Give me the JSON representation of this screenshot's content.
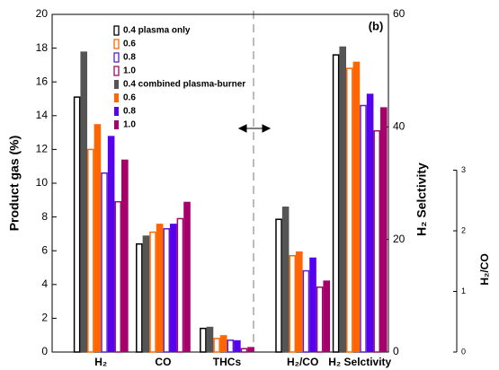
{
  "chart_data": {
    "type": "bar",
    "annotation": "(b)",
    "ylabel": "Product gas (%)",
    "y2label": "H₂ Selctivity",
    "y3label": "H₂/CO",
    "categories": [
      "H₂",
      "CO",
      "THCs",
      "H₂/CO",
      "H₂ Selctivity"
    ],
    "category_axes": [
      "y",
      "y",
      "y",
      "y3",
      "y2"
    ],
    "ylim": [
      0,
      20
    ],
    "yticks": [
      0,
      2,
      4,
      6,
      8,
      10,
      12,
      14,
      16,
      18,
      20
    ],
    "y2lim": [
      0,
      60
    ],
    "y2ticks": [
      0,
      20,
      40,
      60
    ],
    "y3lim": [
      0,
      3
    ],
    "y3ticks": [
      0,
      1,
      2,
      3
    ],
    "series": [
      {
        "name": "0.4 plasma only",
        "color": "#000000",
        "filled": false,
        "values": [
          15.1,
          6.4,
          1.4,
          2.19,
          52.8
        ]
      },
      {
        "name": "0.6",
        "color": "#ff6600",
        "filled": false,
        "values": [
          12.0,
          7.1,
          0.8,
          1.59,
          50.4
        ]
      },
      {
        "name": "0.8",
        "color": "#5a1fc8",
        "filled": false,
        "values": [
          10.6,
          7.3,
          0.7,
          1.34,
          43.8
        ]
      },
      {
        "name": "1.0",
        "color": "#9b0a6e",
        "filled": false,
        "values": [
          8.9,
          7.9,
          0.2,
          1.07,
          39.3
        ]
      },
      {
        "name": "0.4 combined plasma-burner",
        "color": "#555555",
        "filled": true,
        "values": [
          17.8,
          6.9,
          1.5,
          2.4,
          54.3
        ]
      },
      {
        "name": "0.6",
        "color": "#ff6600",
        "filled": true,
        "values": [
          13.5,
          7.6,
          1.0,
          1.66,
          51.6
        ]
      },
      {
        "name": "0.8",
        "color": "#5500ee",
        "filled": true,
        "values": [
          12.8,
          7.6,
          0.7,
          1.56,
          45.9
        ]
      },
      {
        "name": "1.0",
        "color": "#a8006a",
        "filled": true,
        "values": [
          11.4,
          8.9,
          0.3,
          1.18,
          43.5
        ]
      }
    ]
  }
}
